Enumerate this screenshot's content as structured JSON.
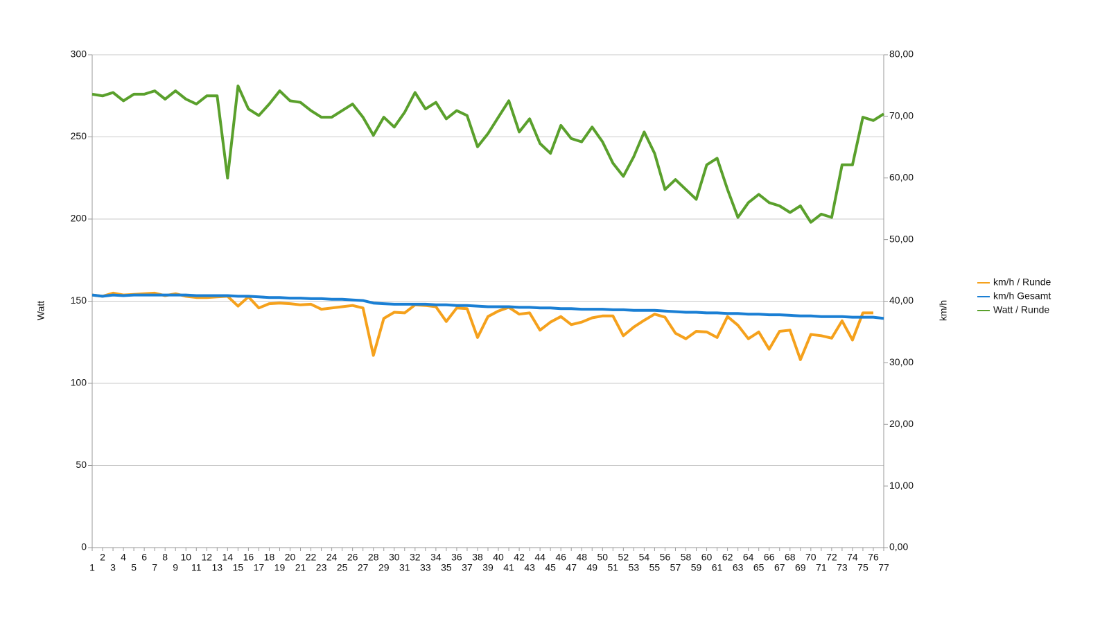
{
  "chart_data": {
    "type": "line",
    "y_label": "Watt",
    "y2_label": "km/h",
    "categories": [
      "1",
      "2",
      "3",
      "4",
      "5",
      "6",
      "7",
      "8",
      "9",
      "10",
      "11",
      "12",
      "13",
      "14",
      "15",
      "16",
      "17",
      "18",
      "19",
      "20",
      "21",
      "22",
      "23",
      "24",
      "25",
      "26",
      "27",
      "28",
      "29",
      "30",
      "31",
      "32",
      "33",
      "34",
      "35",
      "36",
      "37",
      "38",
      "39",
      "40",
      "41",
      "42",
      "43",
      "44",
      "45",
      "46",
      "47",
      "48",
      "49",
      "50",
      "51",
      "52",
      "53",
      "54",
      "55",
      "56",
      "57",
      "58",
      "59",
      "60",
      "61",
      "62",
      "63",
      "64",
      "65",
      "66",
      "67",
      "68",
      "69",
      "70",
      "71",
      "72",
      "73",
      "74",
      "75",
      "76",
      "77"
    ],
    "ylim": [
      0,
      300
    ],
    "yticks": [
      0,
      50,
      100,
      150,
      200,
      250,
      300
    ],
    "y2lim": [
      0,
      80
    ],
    "y2ticks": [
      {
        "value": 0,
        "label": "0,00"
      },
      {
        "value": 10,
        "label": "10,00"
      },
      {
        "value": 20,
        "label": "20,00"
      },
      {
        "value": 30,
        "label": "30,00"
      },
      {
        "value": 40,
        "label": "40,00"
      },
      {
        "value": 50,
        "label": "50,00"
      },
      {
        "value": 60,
        "label": "60,00"
      },
      {
        "value": 70,
        "label": "70,00"
      },
      {
        "value": 80,
        "label": "80,00"
      }
    ],
    "grid": true,
    "legend": "right",
    "series": [
      {
        "name": "km/h / Runde",
        "color": "#f5a11c",
        "axis": "y2",
        "values": [
          41.0,
          40.8,
          41.3,
          41.0,
          41.1,
          41.2,
          41.3,
          40.9,
          41.2,
          40.8,
          40.6,
          40.6,
          40.7,
          40.8,
          39.2,
          40.7,
          38.9,
          39.6,
          39.7,
          39.6,
          39.4,
          39.5,
          38.7,
          38.9,
          39.1,
          39.3,
          38.9,
          31.2,
          37.2,
          38.2,
          38.1,
          39.4,
          39.3,
          39.1,
          36.7,
          38.9,
          38.8,
          34.1,
          37.5,
          38.4,
          39.0,
          37.9,
          38.1,
          35.3,
          36.6,
          37.5,
          36.2,
          36.6,
          37.3,
          37.6,
          37.6,
          34.4,
          35.8,
          36.9,
          37.9,
          37.4,
          34.8,
          33.9,
          35.1,
          35.0,
          34.1,
          37.5,
          36.1,
          33.9,
          35.0,
          32.2,
          35.1,
          35.3,
          30.5,
          34.6,
          34.4,
          34.0,
          36.8,
          33.7,
          38.1,
          38.1,
          null
        ]
      },
      {
        "name": "km/h Gesamt",
        "color": "#1a7fd4",
        "axis": "y2",
        "values": [
          41.0,
          40.8,
          41.0,
          40.9,
          41.0,
          41.0,
          41.0,
          41.0,
          41.0,
          41.0,
          40.9,
          40.9,
          40.9,
          40.9,
          40.8,
          40.8,
          40.7,
          40.6,
          40.6,
          40.5,
          40.5,
          40.4,
          40.4,
          40.3,
          40.3,
          40.2,
          40.1,
          39.7,
          39.6,
          39.5,
          39.5,
          39.5,
          39.5,
          39.4,
          39.4,
          39.3,
          39.3,
          39.2,
          39.1,
          39.1,
          39.1,
          39.0,
          39.0,
          38.9,
          38.9,
          38.8,
          38.8,
          38.7,
          38.7,
          38.7,
          38.6,
          38.6,
          38.5,
          38.5,
          38.5,
          38.4,
          38.3,
          38.2,
          38.2,
          38.1,
          38.1,
          38.0,
          38.0,
          37.9,
          37.9,
          37.8,
          37.8,
          37.7,
          37.6,
          37.6,
          37.5,
          37.5,
          37.5,
          37.4,
          37.4,
          37.4,
          37.2
        ]
      },
      {
        "name": "Watt / Runde",
        "color": "#5aa02c",
        "values": [
          276,
          275,
          277,
          272,
          276,
          276,
          278,
          273,
          278,
          273,
          270,
          275,
          275,
          225,
          281,
          267,
          263,
          270,
          278,
          272,
          271,
          266,
          262,
          262,
          266,
          270,
          262,
          251,
          262,
          256,
          265,
          277,
          267,
          271,
          261,
          266,
          263,
          244,
          252,
          262,
          272,
          253,
          261,
          246,
          240,
          257,
          249,
          247,
          256,
          247,
          234,
          226,
          238,
          253,
          240,
          218,
          224,
          218,
          212,
          233,
          237,
          218,
          201,
          210,
          215,
          210,
          208,
          204,
          208,
          198,
          203,
          201,
          233,
          233,
          262,
          260,
          264
        ]
      }
    ]
  }
}
